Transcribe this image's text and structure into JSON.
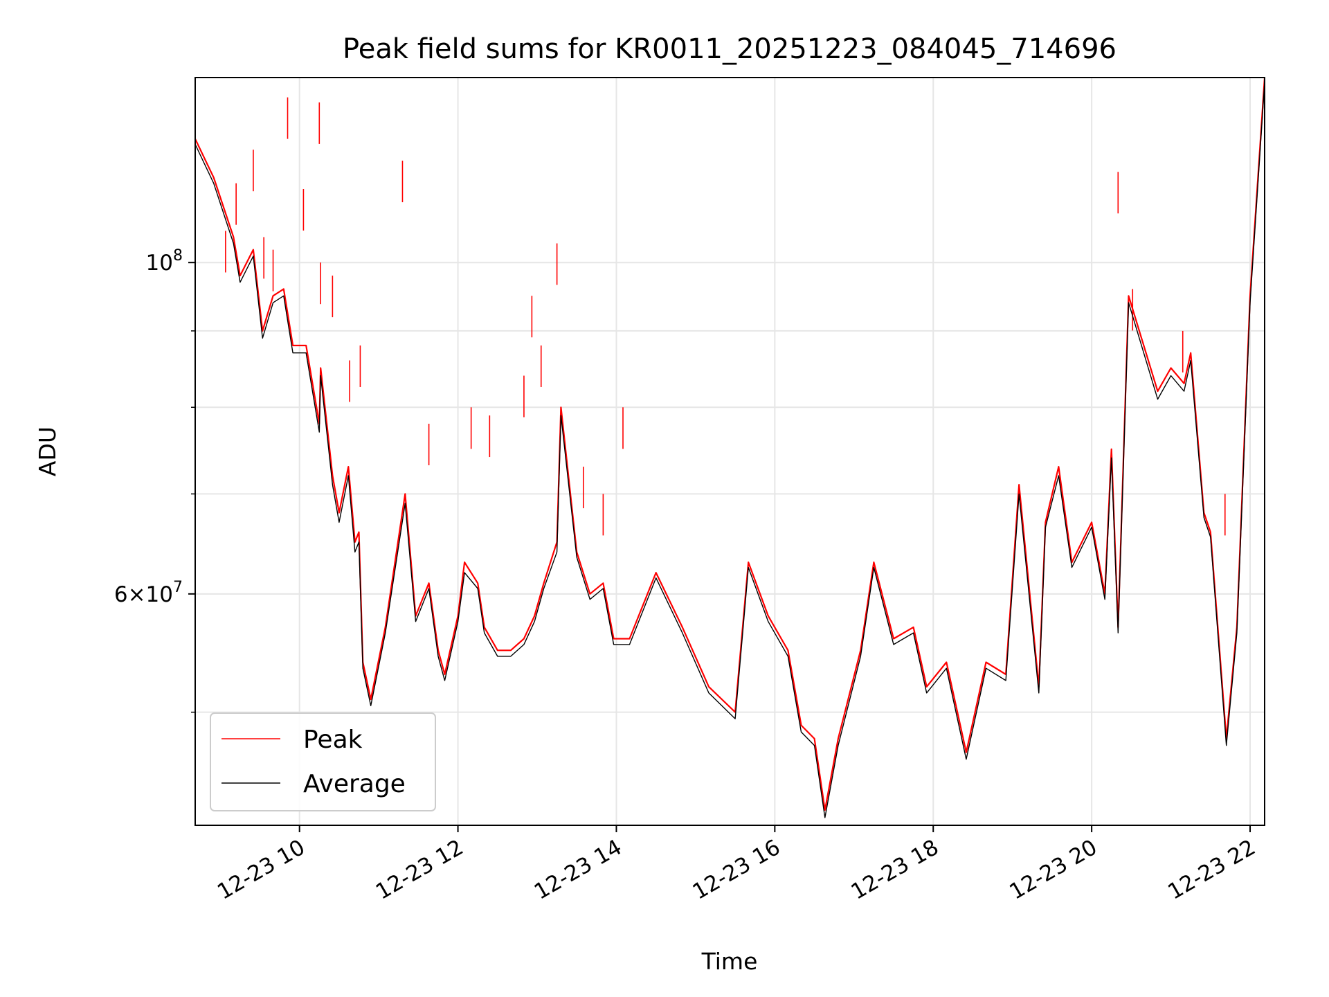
{
  "chart_data": {
    "type": "line",
    "title": "Peak field sums for KR0011_20251223_084045_714696",
    "xlabel": "Time",
    "ylabel": "ADU",
    "y_scale": "log",
    "ylim": [
      42000000,
      133000000
    ],
    "xlim": [
      "2025-12-23 08:41",
      "2025-12-23 22:11"
    ],
    "grid": true,
    "legend_position": "lower-left",
    "x_tick_labels": [
      "12-23 10",
      "12-23 12",
      "12-23 14",
      "12-23 16",
      "12-23 18",
      "12-23 20",
      "12-23 22"
    ],
    "x_ticks": [
      "2025-12-23 10:00",
      "2025-12-23 12:00",
      "2025-12-23 14:00",
      "2025-12-23 16:00",
      "2025-12-23 18:00",
      "2025-12-23 20:00",
      "2025-12-23 22:00"
    ],
    "y_major_ticks": [
      {
        "value": 100000000,
        "mantissa": "",
        "base": "10",
        "exp": "8"
      },
      {
        "value": 60000000,
        "mantissa": "6",
        "base": "10",
        "exp": "7"
      }
    ],
    "y_minor_ticks": [
      50000000,
      70000000,
      80000000,
      90000000
    ],
    "series": [
      {
        "name": "Peak",
        "color": "#ff0000",
        "x": [
          "2025-12-23 08:41",
          "2025-12-23 08:55",
          "2025-12-23 09:10",
          "2025-12-23 09:15",
          "2025-12-23 09:25",
          "2025-12-23 09:32",
          "2025-12-23 09:40",
          "2025-12-23 09:48",
          "2025-12-23 09:55",
          "2025-12-23 10:05",
          "2025-12-23 10:15",
          "2025-12-23 10:16",
          "2025-12-23 10:25",
          "2025-12-23 10:30",
          "2025-12-23 10:37",
          "2025-12-23 10:42",
          "2025-12-23 10:45",
          "2025-12-23 10:48",
          "2025-12-23 10:54",
          "2025-12-23 11:05",
          "2025-12-23 11:20",
          "2025-12-23 11:28",
          "2025-12-23 11:38",
          "2025-12-23 11:45",
          "2025-12-23 11:50",
          "2025-12-23 12:00",
          "2025-12-23 12:05",
          "2025-12-23 12:15",
          "2025-12-23 12:20",
          "2025-12-23 12:30",
          "2025-12-23 12:40",
          "2025-12-23 12:50",
          "2025-12-23 12:58",
          "2025-12-23 13:05",
          "2025-12-23 13:15",
          "2025-12-23 13:18",
          "2025-12-23 13:30",
          "2025-12-23 13:40",
          "2025-12-23 13:50",
          "2025-12-23 13:58",
          "2025-12-23 14:10",
          "2025-12-23 14:30",
          "2025-12-23 14:50",
          "2025-12-23 15:10",
          "2025-12-23 15:30",
          "2025-12-23 15:40",
          "2025-12-23 15:55",
          "2025-12-23 16:10",
          "2025-12-23 16:20",
          "2025-12-23 16:30",
          "2025-12-23 16:38",
          "2025-12-23 16:48",
          "2025-12-23 17:05",
          "2025-12-23 17:15",
          "2025-12-23 17:30",
          "2025-12-23 17:45",
          "2025-12-23 17:55",
          "2025-12-23 18:10",
          "2025-12-23 18:25",
          "2025-12-23 18:40",
          "2025-12-23 18:55",
          "2025-12-23 19:05",
          "2025-12-23 19:20",
          "2025-12-23 19:25",
          "2025-12-23 19:35",
          "2025-12-23 19:45",
          "2025-12-23 20:00",
          "2025-12-23 20:10",
          "2025-12-23 20:15",
          "2025-12-23 20:20",
          "2025-12-23 20:28",
          "2025-12-23 20:50",
          "2025-12-23 21:00",
          "2025-12-23 21:10",
          "2025-12-23 21:15",
          "2025-12-23 21:25",
          "2025-12-23 21:30",
          "2025-12-23 21:42",
          "2025-12-23 21:50",
          "2025-12-23 22:00",
          "2025-12-23 22:11"
        ],
        "y": [
          121000000,
          114000000,
          104000000,
          98000000,
          102000000,
          90000000,
          95000000,
          96000000,
          88000000,
          88000000,
          78000000,
          85000000,
          72000000,
          68000000,
          73000000,
          65000000,
          66000000,
          54000000,
          51000000,
          57000000,
          70000000,
          58000000,
          61000000,
          55000000,
          53000000,
          58000000,
          63000000,
          61000000,
          57000000,
          55000000,
          55000000,
          56000000,
          58000000,
          61000000,
          65000000,
          80000000,
          64000000,
          60000000,
          61000000,
          56000000,
          56000000,
          62000000,
          57000000,
          52000000,
          50000000,
          63000000,
          58000000,
          55000000,
          49000000,
          48000000,
          43000000,
          48000000,
          55000000,
          63000000,
          56000000,
          57000000,
          52000000,
          54000000,
          47000000,
          54000000,
          53000000,
          71000000,
          52000000,
          67000000,
          73000000,
          63000000,
          67000000,
          60000000,
          75000000,
          57000000,
          95000000,
          82000000,
          85000000,
          83000000,
          87000000,
          68000000,
          66000000,
          48000000,
          57000000,
          95000000,
          133000000
        ],
        "spikes": [
          {
            "x": "2025-12-23 09:04",
            "y": 105000000
          },
          {
            "x": "2025-12-23 09:12",
            "y": 113000000
          },
          {
            "x": "2025-12-23 09:25",
            "y": 119000000
          },
          {
            "x": "2025-12-23 09:33",
            "y": 104000000
          },
          {
            "x": "2025-12-23 09:40",
            "y": 102000000
          },
          {
            "x": "2025-12-23 09:51",
            "y": 129000000
          },
          {
            "x": "2025-12-23 10:03",
            "y": 112000000
          },
          {
            "x": "2025-12-23 10:15",
            "y": 128000000
          },
          {
            "x": "2025-12-23 10:16",
            "y": 100000000
          },
          {
            "x": "2025-12-23 10:25",
            "y": 98000000
          },
          {
            "x": "2025-12-23 10:38",
            "y": 86000000
          },
          {
            "x": "2025-12-23 10:46",
            "y": 88000000
          },
          {
            "x": "2025-12-23 11:18",
            "y": 117000000
          },
          {
            "x": "2025-12-23 11:38",
            "y": 78000000
          },
          {
            "x": "2025-12-23 12:10",
            "y": 80000000
          },
          {
            "x": "2025-12-23 12:24",
            "y": 79000000
          },
          {
            "x": "2025-12-23 12:50",
            "y": 84000000
          },
          {
            "x": "2025-12-23 12:56",
            "y": 95000000
          },
          {
            "x": "2025-12-23 13:03",
            "y": 88000000
          },
          {
            "x": "2025-12-23 13:15",
            "y": 103000000
          },
          {
            "x": "2025-12-23 13:35",
            "y": 73000000
          },
          {
            "x": "2025-12-23 13:50",
            "y": 70000000
          },
          {
            "x": "2025-12-23 14:05",
            "y": 80000000
          },
          {
            "x": "2025-12-23 20:20",
            "y": 115000000
          },
          {
            "x": "2025-12-23 20:31",
            "y": 96000000
          },
          {
            "x": "2025-12-23 21:09",
            "y": 90000000
          },
          {
            "x": "2025-12-23 21:41",
            "y": 70000000
          }
        ]
      },
      {
        "name": "Average",
        "color": "#000000",
        "x": [
          "2025-12-23 08:41",
          "2025-12-23 08:55",
          "2025-12-23 09:10",
          "2025-12-23 09:15",
          "2025-12-23 09:25",
          "2025-12-23 09:32",
          "2025-12-23 09:40",
          "2025-12-23 09:48",
          "2025-12-23 09:55",
          "2025-12-23 10:05",
          "2025-12-23 10:15",
          "2025-12-23 10:16",
          "2025-12-23 10:25",
          "2025-12-23 10:30",
          "2025-12-23 10:37",
          "2025-12-23 10:42",
          "2025-12-23 10:45",
          "2025-12-23 10:48",
          "2025-12-23 10:54",
          "2025-12-23 11:05",
          "2025-12-23 11:20",
          "2025-12-23 11:28",
          "2025-12-23 11:38",
          "2025-12-23 11:45",
          "2025-12-23 11:50",
          "2025-12-23 12:00",
          "2025-12-23 12:05",
          "2025-12-23 12:15",
          "2025-12-23 12:20",
          "2025-12-23 12:30",
          "2025-12-23 12:40",
          "2025-12-23 12:50",
          "2025-12-23 12:58",
          "2025-12-23 13:05",
          "2025-12-23 13:15",
          "2025-12-23 13:18",
          "2025-12-23 13:30",
          "2025-12-23 13:40",
          "2025-12-23 13:50",
          "2025-12-23 13:58",
          "2025-12-23 14:10",
          "2025-12-23 14:30",
          "2025-12-23 14:50",
          "2025-12-23 15:10",
          "2025-12-23 15:30",
          "2025-12-23 15:40",
          "2025-12-23 15:55",
          "2025-12-23 16:10",
          "2025-12-23 16:20",
          "2025-12-23 16:30",
          "2025-12-23 16:38",
          "2025-12-23 16:48",
          "2025-12-23 17:05",
          "2025-12-23 17:15",
          "2025-12-23 17:30",
          "2025-12-23 17:45",
          "2025-12-23 17:55",
          "2025-12-23 18:10",
          "2025-12-23 18:25",
          "2025-12-23 18:40",
          "2025-12-23 18:55",
          "2025-12-23 19:05",
          "2025-12-23 19:20",
          "2025-12-23 19:25",
          "2025-12-23 19:35",
          "2025-12-23 19:45",
          "2025-12-23 20:00",
          "2025-12-23 20:10",
          "2025-12-23 20:15",
          "2025-12-23 20:20",
          "2025-12-23 20:28",
          "2025-12-23 20:50",
          "2025-12-23 21:00",
          "2025-12-23 21:10",
          "2025-12-23 21:15",
          "2025-12-23 21:25",
          "2025-12-23 21:30",
          "2025-12-23 21:42",
          "2025-12-23 21:50",
          "2025-12-23 22:00",
          "2025-12-23 22:11"
        ],
        "y": [
          120000000,
          113000000,
          103000000,
          97000000,
          101000000,
          89000000,
          94000000,
          95000000,
          87000000,
          87000000,
          77000000,
          84000000,
          71000000,
          67000000,
          72000000,
          64000000,
          65000000,
          53500000,
          50500000,
          56500000,
          69000000,
          57500000,
          60500000,
          54500000,
          52500000,
          57500000,
          62000000,
          60500000,
          56500000,
          54500000,
          54500000,
          55500000,
          57500000,
          60500000,
          64000000,
          79000000,
          63500000,
          59500000,
          60500000,
          55500000,
          55500000,
          61500000,
          56500000,
          51500000,
          49500000,
          62500000,
          57500000,
          54500000,
          48500000,
          47500000,
          42500000,
          47500000,
          54500000,
          62500000,
          55500000,
          56500000,
          51500000,
          53500000,
          46500000,
          53500000,
          52500000,
          70000000,
          51500000,
          66500000,
          72000000,
          62500000,
          66500000,
          59500000,
          74000000,
          56500000,
          94000000,
          81000000,
          84000000,
          82000000,
          86000000,
          67500000,
          65500000,
          47500000,
          56500000,
          94000000,
          132000000
        ]
      }
    ]
  }
}
